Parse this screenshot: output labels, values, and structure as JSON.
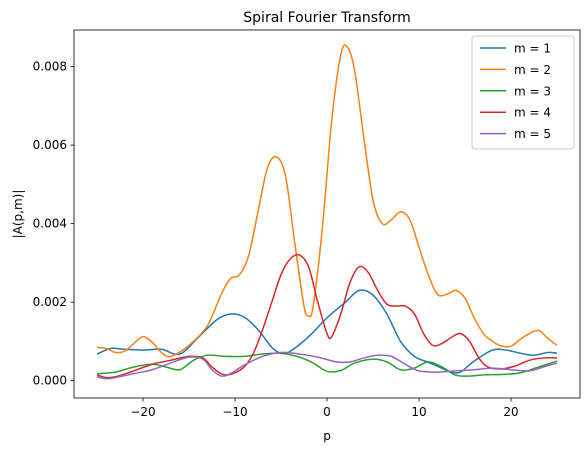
{
  "chart_data": {
    "type": "line",
    "title": "Spiral Fourier Transform",
    "xlabel": "p",
    "ylabel": "|A(p,m)|",
    "xlim": [
      -27.5,
      27.5
    ],
    "ylim": [
      -0.00044,
      0.00893
    ],
    "xticks": [
      -20,
      -10,
      0,
      10,
      20
    ],
    "xtick_labels": [
      "−20",
      "−10",
      "0",
      "10",
      "20"
    ],
    "yticks": [
      0.0,
      0.002,
      0.004,
      0.006,
      0.008
    ],
    "ytick_labels": [
      "0.000",
      "0.002",
      "0.004",
      "0.006",
      "0.008"
    ],
    "grid": false,
    "legend_position": "top-right",
    "series": [
      {
        "name": "m = 1",
        "color": "#1f77b4",
        "points": [
          [
            -25,
            0.00068
          ],
          [
            -23.5,
            0.00082
          ],
          [
            -22,
            0.0008
          ],
          [
            -20,
            0.00078
          ],
          [
            -18,
            0.0008
          ],
          [
            -16,
            0.00068
          ],
          [
            -14,
            0.0011
          ],
          [
            -12,
            0.00155
          ],
          [
            -10.5,
            0.0017
          ],
          [
            -9,
            0.00162
          ],
          [
            -7.5,
            0.0013
          ],
          [
            -6,
            0.00085
          ],
          [
            -5,
            0.0007
          ],
          [
            -4,
            0.00075
          ],
          [
            -2,
            0.00112
          ],
          [
            0,
            0.0016
          ],
          [
            2,
            0.002
          ],
          [
            3.5,
            0.0023
          ],
          [
            5,
            0.00218
          ],
          [
            6.5,
            0.0017
          ],
          [
            8,
            0.001
          ],
          [
            9.5,
            0.00062
          ],
          [
            11,
            0.00047
          ],
          [
            12,
            0.00037
          ],
          [
            13.5,
            0.00022
          ],
          [
            14.5,
            0.00022
          ],
          [
            16,
            0.0005
          ],
          [
            18,
            0.00078
          ],
          [
            19.5,
            0.00078
          ],
          [
            21,
            0.0007
          ],
          [
            22.5,
            0.00065
          ],
          [
            24,
            0.00072
          ],
          [
            25,
            0.0007
          ]
        ]
      },
      {
        "name": "m = 2",
        "color": "#ff7f0e",
        "points": [
          [
            -25,
            0.00085
          ],
          [
            -24,
            0.00082
          ],
          [
            -23,
            0.00072
          ],
          [
            -22,
            0.00075
          ],
          [
            -21,
            0.00095
          ],
          [
            -20,
            0.00112
          ],
          [
            -19,
            0.00098
          ],
          [
            -18,
            0.00072
          ],
          [
            -17,
            0.00062
          ],
          [
            -15,
            0.0009
          ],
          [
            -13,
            0.0014
          ],
          [
            -11.5,
            0.0022
          ],
          [
            -10.5,
            0.0026
          ],
          [
            -9.5,
            0.0027
          ],
          [
            -8.5,
            0.0032
          ],
          [
            -7.5,
            0.0043
          ],
          [
            -6.5,
            0.0054
          ],
          [
            -5.5,
            0.0057
          ],
          [
            -4.5,
            0.0052
          ],
          [
            -3.5,
            0.0035
          ],
          [
            -2.5,
            0.0019
          ],
          [
            -2,
            0.00165
          ],
          [
            -1.5,
            0.0019
          ],
          [
            -0.5,
            0.0039
          ],
          [
            0.5,
            0.0066
          ],
          [
            1.5,
            0.0083
          ],
          [
            2.2,
            0.0085
          ],
          [
            3,
            0.0079
          ],
          [
            4,
            0.0062
          ],
          [
            5,
            0.0046
          ],
          [
            6,
            0.004
          ],
          [
            7,
            0.0041
          ],
          [
            8,
            0.0043
          ],
          [
            9,
            0.0041
          ],
          [
            10,
            0.0034
          ],
          [
            11,
            0.0027
          ],
          [
            12,
            0.0022
          ],
          [
            13,
            0.0022
          ],
          [
            14,
            0.0023
          ],
          [
            15,
            0.0021
          ],
          [
            16,
            0.0016
          ],
          [
            17,
            0.0012
          ],
          [
            18,
            0.001
          ],
          [
            19,
            0.00088
          ],
          [
            20,
            0.00088
          ],
          [
            21,
            0.00105
          ],
          [
            22,
            0.0012
          ],
          [
            23,
            0.00128
          ],
          [
            24,
            0.00108
          ],
          [
            25,
            0.0009
          ]
        ]
      },
      {
        "name": "m = 3",
        "color": "#2ca02c",
        "points": [
          [
            -25,
            0.00018
          ],
          [
            -23,
            0.00022
          ],
          [
            -21,
            0.00035
          ],
          [
            -19,
            0.00042
          ],
          [
            -17.5,
            0.00035
          ],
          [
            -16,
            0.00028
          ],
          [
            -14.5,
            0.00052
          ],
          [
            -13,
            0.00065
          ],
          [
            -11,
            0.00062
          ],
          [
            -9,
            0.00062
          ],
          [
            -7,
            0.00068
          ],
          [
            -5,
            0.0007
          ],
          [
            -3,
            0.0006
          ],
          [
            -1.5,
            0.00045
          ],
          [
            0,
            0.00024
          ],
          [
            1.5,
            0.00026
          ],
          [
            3,
            0.00045
          ],
          [
            5,
            0.00055
          ],
          [
            6.5,
            0.00048
          ],
          [
            8,
            0.00028
          ],
          [
            9.5,
            0.00032
          ],
          [
            11,
            0.00048
          ],
          [
            12.5,
            0.00035
          ],
          [
            14,
            0.00014
          ],
          [
            15.5,
            0.00012
          ],
          [
            17,
            0.00015
          ],
          [
            19,
            0.00016
          ],
          [
            21,
            0.0002
          ],
          [
            23,
            0.00035
          ],
          [
            25,
            0.0005
          ]
        ]
      },
      {
        "name": "m = 4",
        "color": "#d62728",
        "points": [
          [
            -25,
            0.00015
          ],
          [
            -24,
            8e-05
          ],
          [
            -23,
            0.0001
          ],
          [
            -21,
            0.00025
          ],
          [
            -19,
            0.00042
          ],
          [
            -17,
            0.00052
          ],
          [
            -15,
            0.00062
          ],
          [
            -13.5,
            0.00058
          ],
          [
            -12.5,
            0.00035
          ],
          [
            -11.5,
            0.00018
          ],
          [
            -10.5,
            0.00016
          ],
          [
            -9,
            0.00035
          ],
          [
            -8,
            0.0007
          ],
          [
            -7,
            0.0013
          ],
          [
            -6,
            0.002
          ],
          [
            -5,
            0.0027
          ],
          [
            -4,
            0.0031
          ],
          [
            -3,
            0.0032
          ],
          [
            -2,
            0.0029
          ],
          [
            -1,
            0.002
          ],
          [
            0,
            0.0012
          ],
          [
            0.5,
            0.00112
          ],
          [
            1.5,
            0.0017
          ],
          [
            2.5,
            0.0025
          ],
          [
            3.5,
            0.0029
          ],
          [
            4.5,
            0.00275
          ],
          [
            5.5,
            0.0023
          ],
          [
            6.5,
            0.00195
          ],
          [
            7.5,
            0.0019
          ],
          [
            8.5,
            0.0019
          ],
          [
            9.5,
            0.0017
          ],
          [
            10.5,
            0.0012
          ],
          [
            11.5,
            0.0009
          ],
          [
            12.5,
            0.00095
          ],
          [
            13.5,
            0.0011
          ],
          [
            14.5,
            0.0012
          ],
          [
            15.5,
            0.001
          ],
          [
            16.5,
            0.00058
          ],
          [
            17.5,
            0.00035
          ],
          [
            19,
            0.0003
          ],
          [
            20.5,
            0.00038
          ],
          [
            22,
            0.00052
          ],
          [
            23.5,
            0.00058
          ],
          [
            25,
            0.00058
          ]
        ]
      },
      {
        "name": "m = 5",
        "color": "#9467bd",
        "points": [
          [
            -25,
            0.0001
          ],
          [
            -24,
            5e-05
          ],
          [
            -23,
            8e-05
          ],
          [
            -21,
            0.00018
          ],
          [
            -19,
            0.00028
          ],
          [
            -17,
            0.00045
          ],
          [
            -15,
            0.0006
          ],
          [
            -13.5,
            0.00055
          ],
          [
            -12.5,
            0.00028
          ],
          [
            -11.5,
            0.00012
          ],
          [
            -10.5,
            0.00018
          ],
          [
            -9,
            0.0004
          ],
          [
            -7,
            0.00062
          ],
          [
            -5,
            0.00072
          ],
          [
            -3,
            0.00068
          ],
          [
            -1,
            0.0006
          ],
          [
            1,
            0.00048
          ],
          [
            2.5,
            0.00048
          ],
          [
            4,
            0.00058
          ],
          [
            5.5,
            0.00065
          ],
          [
            7,
            0.00062
          ],
          [
            8.5,
            0.00042
          ],
          [
            10,
            0.00025
          ],
          [
            12,
            0.00022
          ],
          [
            14,
            0.00025
          ],
          [
            16,
            0.00028
          ],
          [
            18,
            0.00032
          ],
          [
            20,
            0.00028
          ],
          [
            22,
            0.00025
          ],
          [
            23.5,
            0.00035
          ],
          [
            25,
            0.00045
          ]
        ]
      }
    ]
  }
}
